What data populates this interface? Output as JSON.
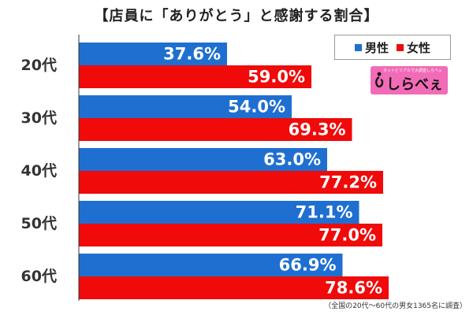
{
  "title": "【店員に「ありがとう」と感謝する割合】",
  "legend": {
    "male": "男性",
    "female": "女性"
  },
  "colors": {
    "male": "#1f6fd1",
    "female": "#f00a0a",
    "axis": "#333333"
  },
  "logo": {
    "text": "しらべぇ",
    "tagline": "ネットとリアルで大調査しらべぇ"
  },
  "footnote": "（全国の20代～60代の男女1365名に調査）",
  "chart_data": {
    "type": "bar",
    "orientation": "horizontal",
    "title": "【店員に「ありがとう」と感謝する割合】",
    "categories": [
      "20代",
      "30代",
      "40代",
      "50代",
      "60代"
    ],
    "series": [
      {
        "name": "男性",
        "values": [
          37.6,
          54.0,
          63.0,
          71.1,
          66.9
        ],
        "labels": [
          "37.6%",
          "54.0%",
          "63.0%",
          "71.1%",
          "66.9%"
        ]
      },
      {
        "name": "女性",
        "values": [
          59.0,
          69.3,
          77.2,
          77.0,
          78.6
        ],
        "labels": [
          "59.0%",
          "69.3%",
          "77.2%",
          "77.0%",
          "78.6%"
        ]
      }
    ],
    "xlim": [
      0,
      100
    ],
    "xlabel": "",
    "ylabel": "",
    "grid": false,
    "legend_position": "top-right"
  }
}
